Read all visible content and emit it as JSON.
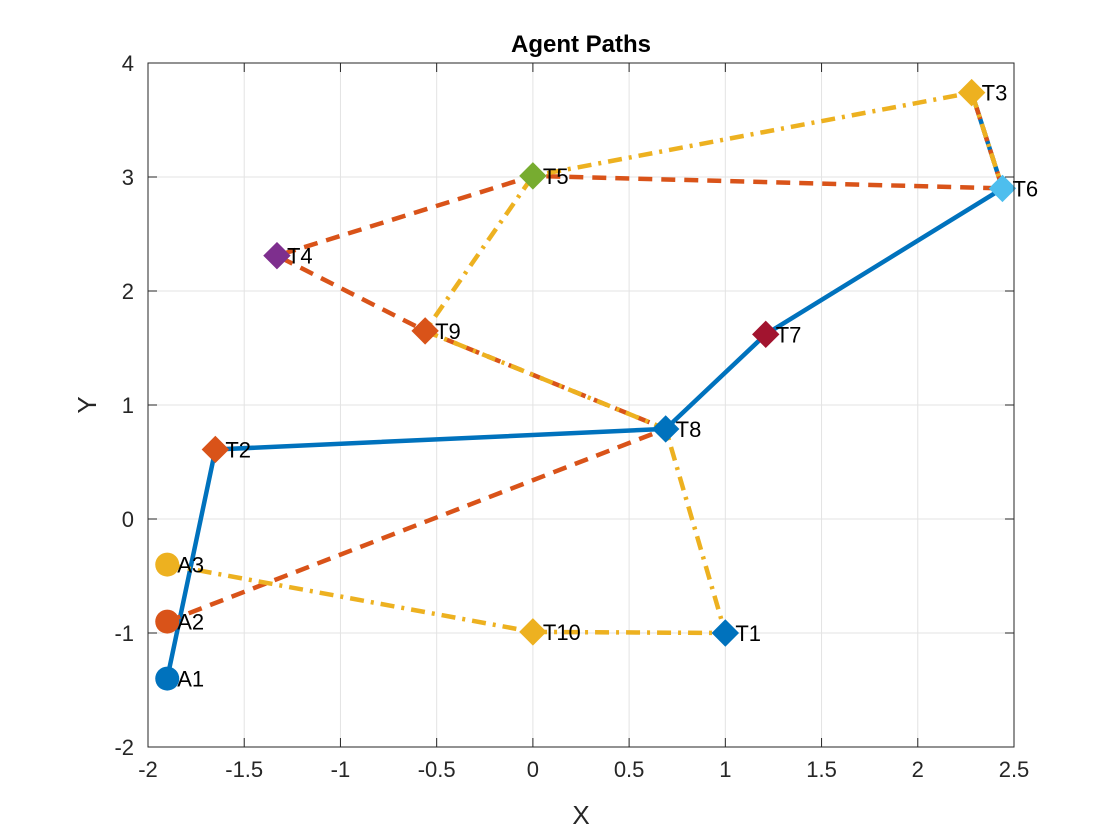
{
  "chart_data": {
    "type": "line",
    "title": "Agent Paths",
    "xlabel": "X",
    "ylabel": "Y",
    "xlim": [
      -2,
      2.5
    ],
    "ylim": [
      -2,
      4
    ],
    "xticks": [
      -2,
      -1.5,
      -1,
      -0.5,
      0,
      0.5,
      1,
      1.5,
      2,
      2.5
    ],
    "yticks": [
      -2,
      -1,
      0,
      1,
      2,
      3,
      4
    ],
    "xtick_labels": [
      "-2",
      "-1.5",
      "-1",
      "-0.5",
      "0",
      "0.5",
      "1",
      "1.5",
      "2",
      "2.5"
    ],
    "ytick_labels": [
      "-2",
      "-1",
      "0",
      "1",
      "2",
      "3",
      "4"
    ],
    "grid": true,
    "agents": [
      {
        "label": "A1",
        "x": -1.9,
        "y": -1.4,
        "color": "#0072BD"
      },
      {
        "label": "A2",
        "x": -1.9,
        "y": -0.9,
        "color": "#D95319"
      },
      {
        "label": "A3",
        "x": -1.9,
        "y": -0.4,
        "color": "#EDB120"
      }
    ],
    "tasks": [
      {
        "label": "T1",
        "x": 1.0,
        "y": -1.0,
        "color": "#0072BD"
      },
      {
        "label": "T2",
        "x": -1.65,
        "y": 0.61,
        "color": "#D95319"
      },
      {
        "label": "T3",
        "x": 2.28,
        "y": 3.74,
        "color": "#EDB120"
      },
      {
        "label": "T4",
        "x": -1.33,
        "y": 2.31,
        "color": "#7E2F8E"
      },
      {
        "label": "T5",
        "x": 0.0,
        "y": 3.01,
        "color": "#77AC30"
      },
      {
        "label": "T6",
        "x": 2.44,
        "y": 2.9,
        "color": "#4DBEEE"
      },
      {
        "label": "T7",
        "x": 1.21,
        "y": 1.62,
        "color": "#A2142F"
      },
      {
        "label": "T8",
        "x": 0.69,
        "y": 0.79,
        "color": "#0072BD"
      },
      {
        "label": "T9",
        "x": -0.56,
        "y": 1.65,
        "color": "#D95319"
      },
      {
        "label": "T10",
        "x": 0.0,
        "y": -0.99,
        "color": "#EDB120"
      }
    ],
    "series": [
      {
        "color": "#0072BD",
        "style": "solid",
        "points": [
          [
            -1.9,
            -1.4
          ],
          [
            -1.65,
            0.61
          ],
          [
            0.69,
            0.79
          ],
          [
            1.21,
            1.62
          ],
          [
            2.44,
            2.9
          ],
          [
            2.28,
            3.74
          ]
        ]
      },
      {
        "color": "#D95319",
        "style": "dashed",
        "points": [
          [
            -1.9,
            -0.9
          ],
          [
            0.69,
            0.79
          ],
          [
            -0.56,
            1.65
          ],
          [
            -1.33,
            2.31
          ],
          [
            0.0,
            3.01
          ],
          [
            2.44,
            2.9
          ],
          [
            2.28,
            3.74
          ]
        ]
      },
      {
        "color": "#EDB120",
        "style": "dashdot",
        "points": [
          [
            -1.9,
            -0.4
          ],
          [
            0.0,
            -0.99
          ],
          [
            1.0,
            -1.0
          ],
          [
            0.69,
            0.79
          ],
          [
            -0.56,
            1.65
          ],
          [
            0.0,
            3.01
          ],
          [
            2.28,
            3.74
          ],
          [
            2.44,
            2.9
          ]
        ]
      }
    ]
  }
}
